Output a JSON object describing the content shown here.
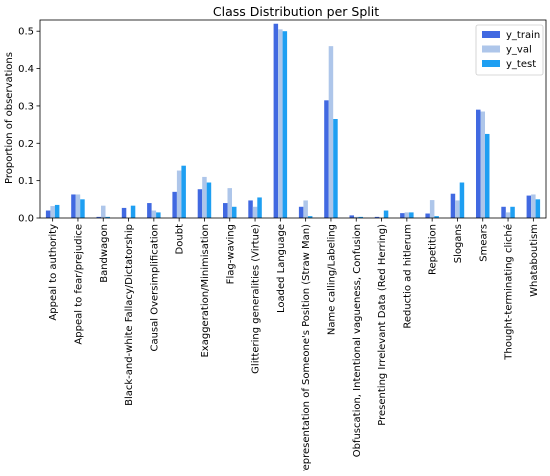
{
  "colors": {
    "y_train": "#4169e1",
    "y_val": "#aec6ea",
    "y_test": "#1e9ff2",
    "axis": "#000000",
    "legend_border": "#cccccc"
  },
  "chart_data": {
    "type": "bar",
    "title": "Class Distribution per Split",
    "xlabel": "",
    "ylabel": "Proportion of observations",
    "ylim": [
      0,
      0.53
    ],
    "yticks": [
      0.0,
      0.1,
      0.2,
      0.3,
      0.4,
      0.5
    ],
    "ytick_labels": [
      "0.0",
      "0.1",
      "0.2",
      "0.3",
      "0.4",
      "0.5"
    ],
    "grid": false,
    "legend_position": "top-right",
    "categories": [
      "Appeal to authority",
      "Appeal to fear/prejudice",
      "Bandwagon",
      "Black-and-white Fallacy/Dictatorship",
      "Causal Oversimplification",
      "Doubt",
      "Exaggeration/Minimisation",
      "Flag-waving",
      "Glittering generalities (Virtue)",
      "Loaded Language",
      "Misrepresentation of Someone's Position (Straw Man)",
      "Name calling/Labeling",
      "Obfuscation, Intentional vagueness, Confusion",
      "Presenting Irrelevant Data (Red Herring)",
      "Reductio ad hitlerum",
      "Repetition",
      "Slogans",
      "Smears",
      "Thought-terminating cliché",
      "Whataboutism"
    ],
    "series": [
      {
        "name": "y_train",
        "color_key": "y_train",
        "values": [
          0.02,
          0.063,
          0.003,
          0.027,
          0.04,
          0.07,
          0.077,
          0.04,
          0.047,
          0.52,
          0.03,
          0.315,
          0.007,
          0.003,
          0.013,
          0.012,
          0.065,
          0.29,
          0.03,
          0.06
        ]
      },
      {
        "name": "y_val",
        "color_key": "y_val",
        "values": [
          0.032,
          0.063,
          0.033,
          0.0,
          0.02,
          0.127,
          0.11,
          0.08,
          0.03,
          0.505,
          0.047,
          0.46,
          0.003,
          0.0,
          0.015,
          0.048,
          0.047,
          0.285,
          0.015,
          0.063
        ]
      },
      {
        "name": "y_test",
        "color_key": "y_test",
        "values": [
          0.035,
          0.05,
          0.003,
          0.033,
          0.015,
          0.14,
          0.095,
          0.03,
          0.055,
          0.5,
          0.005,
          0.265,
          0.003,
          0.02,
          0.015,
          0.005,
          0.095,
          0.225,
          0.03,
          0.05
        ]
      }
    ]
  }
}
